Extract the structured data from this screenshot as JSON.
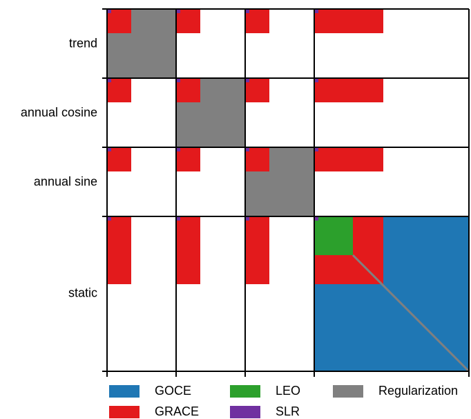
{
  "rows": [
    {
      "label": "trend"
    },
    {
      "label": "annual cosine"
    },
    {
      "label": "annual sine"
    },
    {
      "label": "static"
    }
  ],
  "colors": {
    "GOCE": "#1f77b4",
    "GRACE": "#e31a1c",
    "LEO": "#2ca02c",
    "SLR": "#7030a0",
    "Regularization": "#808080"
  },
  "legend": [
    {
      "label": "GOCE",
      "color_key": "GOCE"
    },
    {
      "label": "GRACE",
      "color_key": "GRACE"
    },
    {
      "label": "LEO",
      "color_key": "LEO"
    },
    {
      "label": "SLR",
      "color_key": "SLR"
    },
    {
      "label": "Regularization",
      "color_key": "Regularization"
    }
  ]
}
